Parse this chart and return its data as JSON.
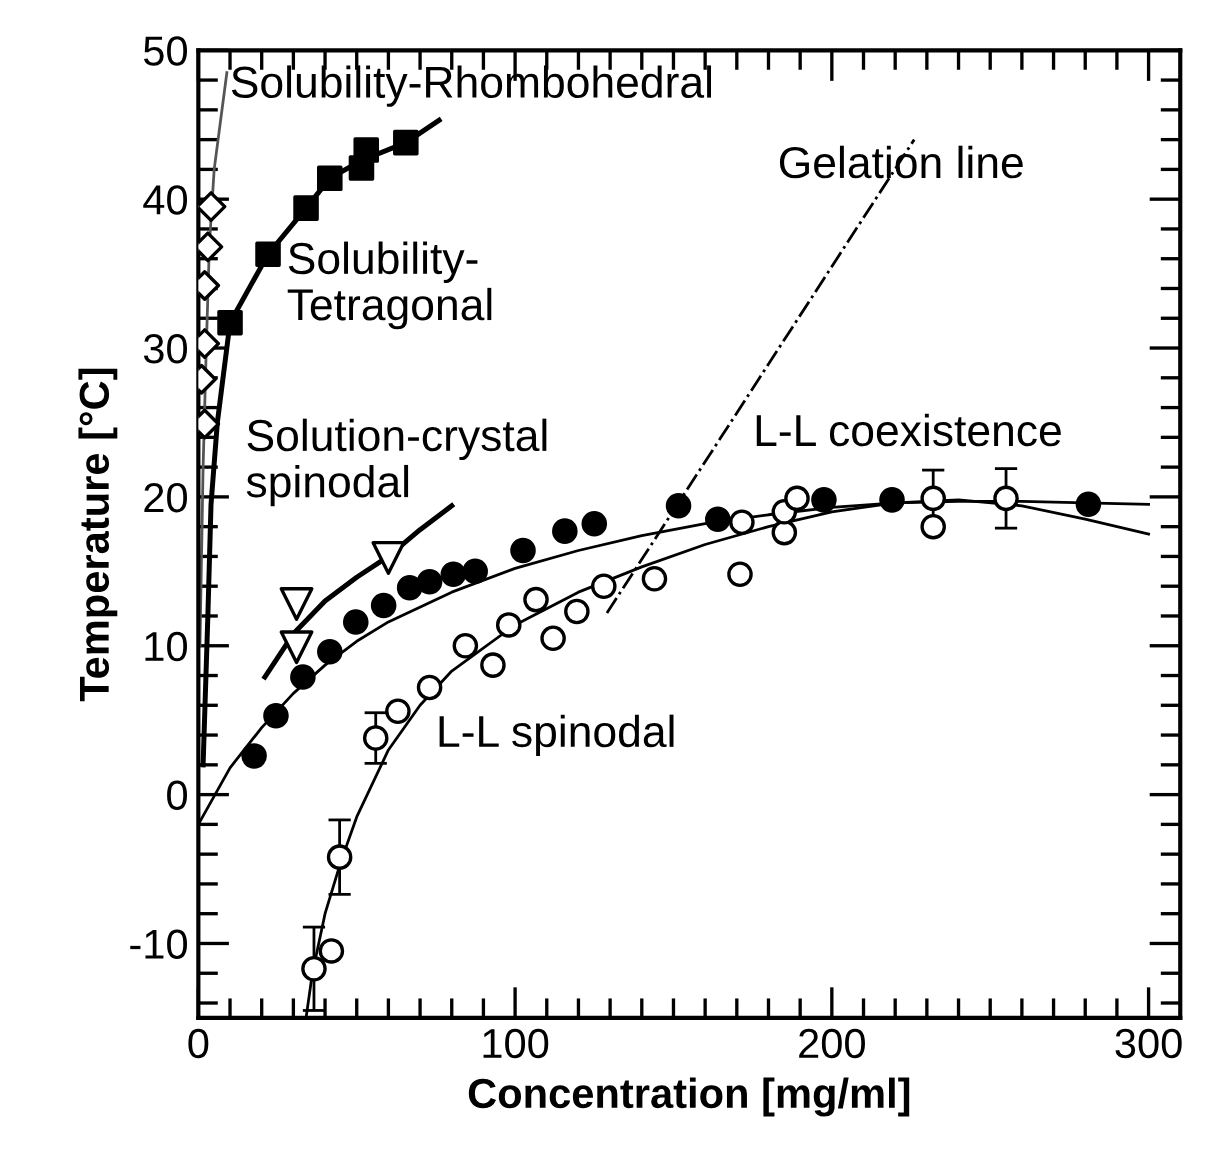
{
  "chart_data": {
    "type": "scatter",
    "xlabel": "Concentration [mg/ml]",
    "ylabel": "Temperature [°C]",
    "xlim": [
      0,
      310
    ],
    "ylim": [
      -15,
      50
    ],
    "xticks": [
      0,
      {
        "value": 10,
        "label": null
      },
      {
        "value": 20,
        "label": null
      },
      {
        "value": 30,
        "label": null
      },
      {
        "value": 40,
        "label": null
      },
      {
        "value": 50,
        "label": null
      },
      {
        "value": 60,
        "label": null
      },
      {
        "value": 70,
        "label": null
      },
      {
        "value": 80,
        "label": null
      },
      {
        "value": 90,
        "label": null
      },
      100,
      {
        "value": 110,
        "label": null
      },
      {
        "value": 120,
        "label": null
      },
      {
        "value": 130,
        "label": null
      },
      {
        "value": 140,
        "label": null
      },
      {
        "value": 150,
        "label": null
      },
      {
        "value": 160,
        "label": null
      },
      {
        "value": 170,
        "label": null
      },
      {
        "value": 180,
        "label": null
      },
      {
        "value": 190,
        "label": null
      },
      200,
      {
        "value": 210,
        "label": null
      },
      {
        "value": 220,
        "label": null
      },
      {
        "value": 230,
        "label": null
      },
      {
        "value": 240,
        "label": null
      },
      {
        "value": 250,
        "label": null
      },
      {
        "value": 260,
        "label": null
      },
      {
        "value": 270,
        "label": null
      },
      {
        "value": 280,
        "label": null
      },
      {
        "value": 290,
        "label": null
      },
      300
    ],
    "yticks": [
      {
        "value": -14,
        "label": null
      },
      {
        "value": -12,
        "label": null
      },
      -10,
      {
        "value": -8,
        "label": null
      },
      {
        "value": -6,
        "label": null
      },
      {
        "value": -4,
        "label": null
      },
      {
        "value": -2,
        "label": null
      },
      0,
      {
        "value": 2,
        "label": null
      },
      {
        "value": 4,
        "label": null
      },
      {
        "value": 6,
        "label": null
      },
      {
        "value": 8,
        "label": null
      },
      10,
      {
        "value": 12,
        "label": null
      },
      {
        "value": 14,
        "label": null
      },
      {
        "value": 16,
        "label": null
      },
      {
        "value": 18,
        "label": null
      },
      20,
      {
        "value": 22,
        "label": null
      },
      {
        "value": 24,
        "label": null
      },
      {
        "value": 26,
        "label": null
      },
      {
        "value": 28,
        "label": null
      },
      30,
      {
        "value": 32,
        "label": null
      },
      {
        "value": 34,
        "label": null
      },
      {
        "value": 36,
        "label": null
      },
      {
        "value": 38,
        "label": null
      },
      40,
      {
        "value": 42,
        "label": null
      },
      {
        "value": 44,
        "label": null
      },
      {
        "value": 46,
        "label": null
      },
      {
        "value": 48,
        "label": null
      },
      50
    ],
    "grid": false,
    "legend": false,
    "series": [
      {
        "type": "line",
        "marker": "none",
        "line_style": "solid",
        "color": "#555555",
        "x": [
          0.5,
          1.5,
          2.5,
          3.5,
          5,
          9
        ],
        "values": [
          10,
          22,
          30,
          37,
          42,
          48.5
        ]
      },
      {
        "type": "line",
        "marker": "none",
        "line_style": "solid",
        "color": "#000000",
        "x": [
          1.5,
          3,
          4,
          6,
          10,
          22,
          34,
          41.5,
          51.5,
          65.5,
          76
        ],
        "values": [
          2,
          12,
          19.5,
          25,
          31.7,
          36.3,
          39.4,
          41.4,
          42.6,
          43.8,
          45.3
        ]
      },
      {
        "type": "line",
        "marker": "none",
        "line_style": "solid",
        "color": "#000000",
        "x": [
          21,
          30,
          40,
          50,
          60,
          70,
          80
        ],
        "values": [
          7.9,
          10.8,
          13,
          14.6,
          16,
          17.8,
          19.4
        ]
      },
      {
        "type": "line",
        "marker": "none",
        "line_style": "solid",
        "color": "#000000",
        "x": [
          0,
          10,
          20,
          30,
          40,
          50,
          60,
          80,
          100,
          120,
          140,
          160,
          180,
          200,
          220,
          240,
          260,
          280,
          300
        ],
        "values": [
          -2,
          1.8,
          4.5,
          6.8,
          8.7,
          10.3,
          11.6,
          13.6,
          15.2,
          16.4,
          17.4,
          18.2,
          18.8,
          19.3,
          19.6,
          19.7,
          19.7,
          19.6,
          19.5
        ]
      },
      {
        "type": "line",
        "marker": "none",
        "line_style": "solid",
        "color": "#000000",
        "x": [
          34,
          36,
          40,
          45,
          50,
          60,
          70,
          80,
          100,
          120,
          140,
          160,
          180,
          200,
          220,
          240,
          260,
          280,
          300
        ],
        "values": [
          -15,
          -12,
          -8,
          -4.5,
          -1.5,
          3,
          6,
          8.3,
          11.4,
          13.6,
          15.3,
          16.8,
          18,
          19,
          19.6,
          19.8,
          19.4,
          18.5,
          17.5
        ]
      },
      {
        "type": "line",
        "marker": "none",
        "line_style": "dashdot",
        "color": "#000000",
        "x": [
          129,
          226
        ],
        "values": [
          12.2,
          44
        ]
      },
      {
        "marker": "diamond",
        "color": "#ffffff",
        "x": [
          4,
          3,
          2,
          2,
          1,
          2
        ],
        "values": [
          39.5,
          36.8,
          34.2,
          30.3,
          27.9,
          24.9
        ]
      },
      {
        "marker": "square",
        "color": "#000000",
        "x": [
          10,
          22,
          34,
          41.5,
          51.5,
          53,
          65.5
        ],
        "values": [
          31.7,
          36.3,
          39.4,
          41.4,
          42.1,
          43.3,
          43.8
        ]
      },
      {
        "marker": "triangle_down",
        "color": "#ffffff",
        "x": [
          31,
          31,
          60
        ],
        "values": [
          12.8,
          9.9,
          15.9
        ]
      },
      {
        "marker": "circle",
        "color": "#000000",
        "x": [
          17.6,
          24.5,
          33,
          41.5,
          49.7,
          58.5,
          66.7,
          73,
          80.5,
          87.4,
          102.5,
          115.7,
          125,
          151.6,
          164,
          197.5,
          219,
          281
        ],
        "values": [
          2.6,
          5.3,
          7.9,
          9.6,
          11.6,
          12.7,
          13.9,
          14.3,
          14.8,
          15.0,
          16.4,
          17.7,
          18.2,
          19.4,
          18.5,
          19.8,
          19.8,
          19.5
        ]
      },
      {
        "marker": "circle",
        "color": "#ffffff",
        "x": [
          36.5,
          42,
          44.6,
          56,
          63,
          73,
          84.3,
          93,
          98,
          106.6,
          112,
          119.5,
          128,
          144,
          171,
          171.6,
          185,
          185,
          189,
          232,
          232,
          255
        ],
        "values": [
          -11.7,
          -10.5,
          -4.2,
          3.8,
          5.6,
          7.2,
          10.0,
          8.7,
          11.4,
          13.1,
          10.5,
          12.3,
          14.0,
          14.5,
          14.8,
          18.3,
          17.6,
          19.0,
          19.9,
          19.9,
          18.0,
          19.9
        ],
        "errors": [
          2.8,
          null,
          2.5,
          1.7,
          null,
          null,
          null,
          null,
          null,
          null,
          null,
          null,
          null,
          null,
          null,
          null,
          null,
          null,
          null,
          1.9,
          null,
          2
        ]
      }
    ],
    "annotations": [
      "Solubility-Rhombohedral",
      "Solubility-\nTetragonal",
      "Gelation line",
      "Solution-crystal\nspinodal",
      "L-L coexistence",
      "L-L spinodal"
    ]
  }
}
